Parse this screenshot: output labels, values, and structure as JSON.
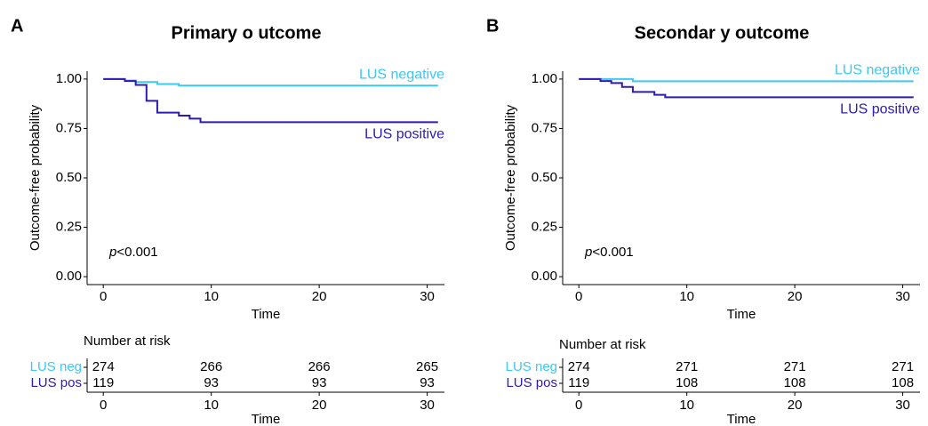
{
  "chart_data": [
    {
      "type": "line",
      "panel": "A",
      "title": "Primary o utcome",
      "xlabel": "Time",
      "ylabel": "Outcome-free probability",
      "xlim": [
        -1.5,
        31.6
      ],
      "ylim": [
        -0.04,
        1.04
      ],
      "xticks": [
        0,
        10,
        20,
        30
      ],
      "yticks": [
        {
          "value": 0,
          "label": "0.00"
        },
        {
          "value": 0.25,
          "label": "0.25"
        },
        {
          "value": 0.5,
          "label": "0.50"
        },
        {
          "value": 0.75,
          "label": "0.75"
        },
        {
          "value": 1,
          "label": "1.00"
        }
      ],
      "step": true,
      "annotation": [
        "p",
        "<0.001"
      ],
      "series": [
        {
          "name": "LUS negative",
          "color": "#3cc8f0",
          "label_side": "above",
          "x": [
            0,
            2,
            2,
            3,
            3,
            5,
            5,
            7,
            7,
            31
          ],
          "values": [
            1,
            1,
            0.993,
            0.993,
            0.985,
            0.985,
            0.975,
            0.975,
            0.967,
            0.967
          ]
        },
        {
          "name": "LUS positive",
          "color": "#2e1bb0",
          "label_side": "below",
          "x": [
            0,
            2,
            2,
            3,
            3,
            4,
            4,
            5,
            5,
            7,
            7,
            8,
            8,
            9,
            9,
            31
          ],
          "values": [
            1,
            1,
            0.99,
            0.99,
            0.97,
            0.97,
            0.89,
            0.89,
            0.83,
            0.83,
            0.815,
            0.815,
            0.8,
            0.8,
            0.782,
            0.782
          ]
        }
      ],
      "risk_table": {
        "title": "Number at risk",
        "xlabel": "Time",
        "times": [
          0,
          10,
          20,
          30
        ],
        "rows": [
          {
            "name": "LUS neg",
            "color": "#3cc8f0",
            "values": [
              274,
              266,
              266,
              265
            ]
          },
          {
            "name": "LUS pos",
            "color": "#2e1bb0",
            "values": [
              119,
              93,
              93,
              93
            ]
          }
        ]
      }
    },
    {
      "type": "line",
      "panel": "B",
      "title": "Secondar y outcome",
      "xlabel": "Time",
      "ylabel": "Outcome-free probability",
      "xlim": [
        -1.5,
        31.6
      ],
      "ylim": [
        -0.04,
        1.04
      ],
      "xticks": [
        0,
        10,
        20,
        30
      ],
      "yticks": [
        {
          "value": 0,
          "label": "0.00"
        },
        {
          "value": 0.25,
          "label": "0.25"
        },
        {
          "value": 0.5,
          "label": "0.50"
        },
        {
          "value": 0.75,
          "label": "0.75"
        },
        {
          "value": 1,
          "label": "1.00"
        }
      ],
      "step": true,
      "annotation": [
        "p",
        "<0.001"
      ],
      "series": [
        {
          "name": "LUS negative",
          "color": "#3cc8f0",
          "label_side": "above",
          "x": [
            0,
            5,
            5,
            31
          ],
          "values": [
            1,
            1,
            0.989,
            0.989
          ]
        },
        {
          "name": "LUS positive",
          "color": "#2e1bb0",
          "label_side": "below",
          "x": [
            0,
            2,
            2,
            3,
            3,
            4,
            4,
            5,
            5,
            7,
            7,
            8,
            8,
            31
          ],
          "values": [
            1,
            1,
            0.99,
            0.99,
            0.98,
            0.98,
            0.96,
            0.96,
            0.935,
            0.935,
            0.92,
            0.92,
            0.908,
            0.908
          ]
        }
      ],
      "risk_table": {
        "title": "Number at risk",
        "xlabel": "Time",
        "times": [
          0,
          10,
          20,
          30
        ],
        "rows": [
          {
            "name": "LUS neg",
            "color": "#3cc8f0",
            "values": [
              274,
              271,
              271,
              271
            ]
          },
          {
            "name": "LUS pos",
            "color": "#2e1bb0",
            "values": [
              119,
              108,
              108,
              108
            ]
          }
        ]
      }
    }
  ]
}
